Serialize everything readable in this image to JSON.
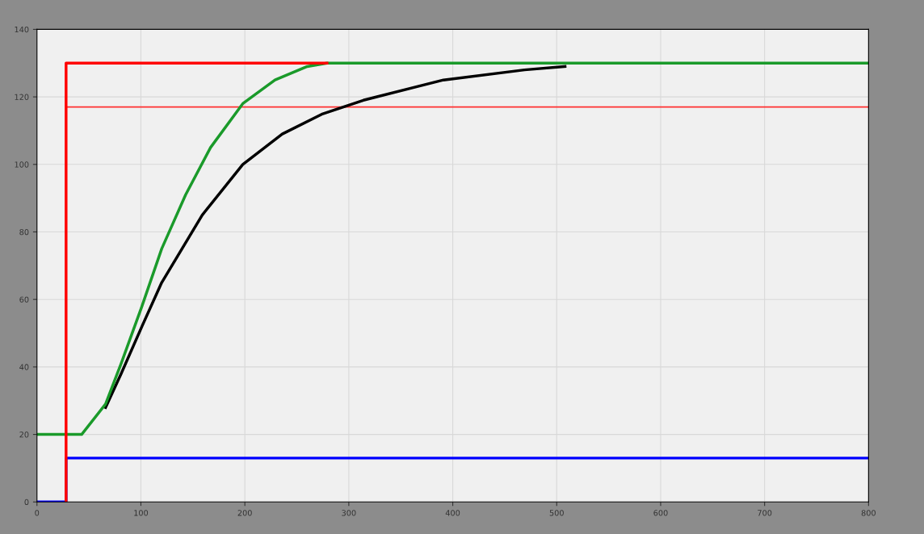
{
  "chart_data": {
    "type": "line",
    "xlim": [
      0,
      800
    ],
    "ylim": [
      0,
      140
    ],
    "xticks": [
      0,
      100,
      200,
      300,
      400,
      500,
      600,
      700,
      800
    ],
    "yticks": [
      0,
      20,
      40,
      60,
      80,
      100,
      120,
      140
    ],
    "grid": true,
    "line_style": "solid",
    "marker": "none",
    "series": [
      {
        "color": "#0000ff",
        "x": [
          0,
          28,
          28,
          800
        ],
        "values": [
          0,
          0,
          13,
          13
        ]
      },
      {
        "color": "#ff3030",
        "x": [
          28,
          800
        ],
        "values": [
          117,
          117
        ]
      },
      {
        "color": "#000000",
        "x": [
          66,
          81,
          101,
          120,
          159,
          198,
          236,
          275,
          314,
          391,
          469,
          508
        ],
        "values": [
          28,
          38,
          52,
          65,
          85,
          100,
          109,
          115,
          119,
          125,
          128,
          129
        ]
      },
      {
        "color": "#1a9a2a",
        "x": [
          0,
          43,
          66,
          81,
          101,
          120,
          143,
          167,
          198,
          229,
          260,
          279,
          800
        ],
        "values": [
          20,
          20,
          29,
          41,
          58,
          75,
          91,
          105,
          118,
          125,
          129,
          130,
          130
        ]
      },
      {
        "color": "#ff0000",
        "x": [
          28,
          28,
          279
        ],
        "values": [
          0,
          130,
          130
        ]
      }
    ]
  }
}
